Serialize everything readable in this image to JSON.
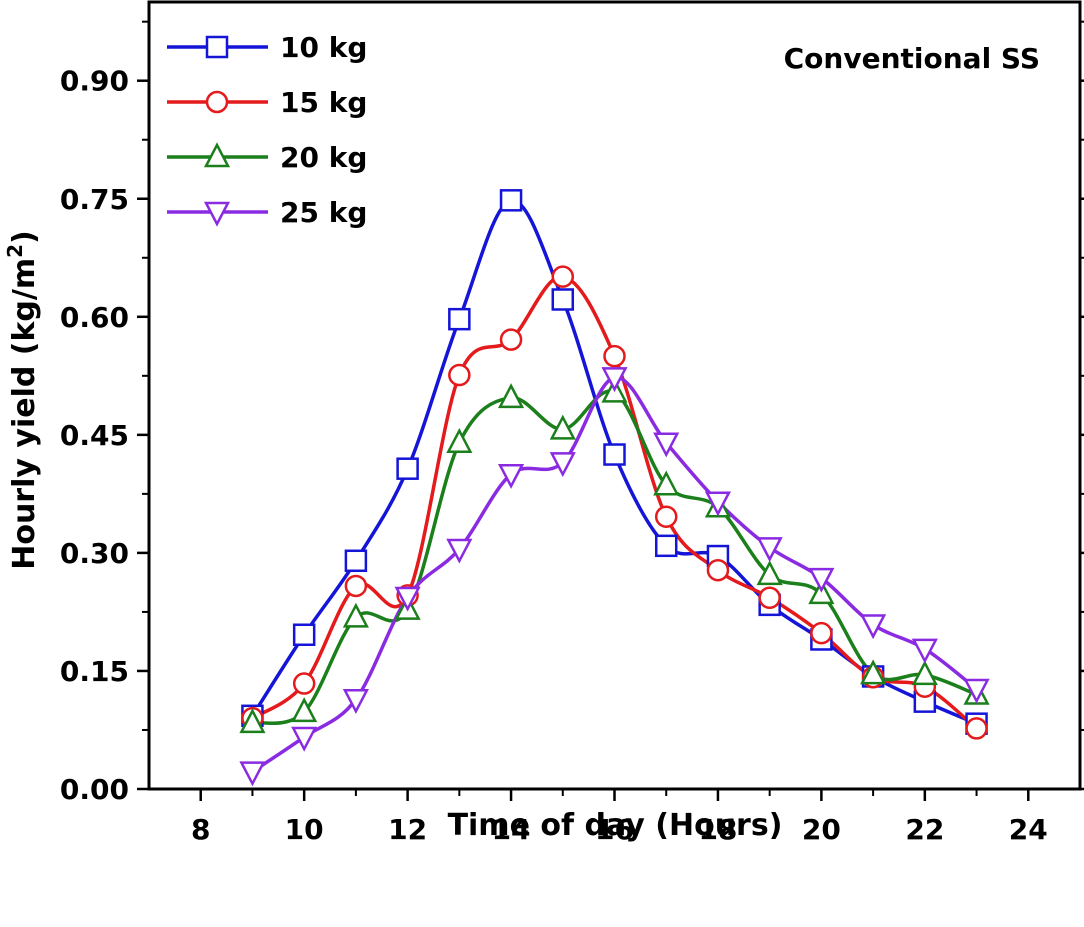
{
  "chart_data": {
    "type": "line",
    "title": "",
    "annotation": "Conventional SS",
    "xlabel": "Time of day (Hours)",
    "ylabel_main": "Hourly yield (kg/m",
    "ylabel_sup": "2",
    "ylabel_end": ")",
    "xlim": [
      7,
      25
    ],
    "ylim": [
      0.0,
      1.0
    ],
    "xticks": [
      8,
      10,
      12,
      14,
      16,
      18,
      20,
      22,
      24
    ],
    "xtick_labels": [
      "8",
      "10",
      "12",
      "14",
      "16",
      "18",
      "20",
      "22",
      "24"
    ],
    "yticks": [
      0.0,
      0.15,
      0.3,
      0.45,
      0.6,
      0.75,
      0.9
    ],
    "ytick_labels": [
      "0.00",
      "0.15",
      "0.30",
      "0.45",
      "0.60",
      "0.75",
      "0.90"
    ],
    "legend_position": "top-left",
    "x": [
      9,
      10,
      11,
      12,
      13,
      14,
      15,
      16,
      17,
      18,
      19,
      20,
      21,
      22,
      23
    ],
    "series": [
      {
        "name": "10 kg",
        "marker": "square",
        "color": "#1515d8",
        "values": [
          0.093,
          0.196,
          0.29,
          0.407,
          0.597,
          0.748,
          0.622,
          0.425,
          0.309,
          0.296,
          0.234,
          0.19,
          0.143,
          0.111,
          0.083
        ]
      },
      {
        "name": "15 kg",
        "marker": "circle",
        "color": "#e41a1c",
        "values": [
          0.09,
          0.134,
          0.258,
          0.246,
          0.526,
          0.571,
          0.651,
          0.55,
          0.346,
          0.278,
          0.243,
          0.198,
          0.142,
          0.13,
          0.077
        ]
      },
      {
        "name": "20 kg",
        "marker": "triangle-up",
        "color": "#1b7f1b",
        "values": [
          0.084,
          0.098,
          0.218,
          0.228,
          0.44,
          0.497,
          0.457,
          0.504,
          0.386,
          0.358,
          0.272,
          0.248,
          0.146,
          0.145,
          0.12
        ]
      },
      {
        "name": "25 kg",
        "marker": "triangle-down",
        "color": "#8a2be2",
        "values": [
          0.022,
          0.066,
          0.114,
          0.244,
          0.305,
          0.4,
          0.415,
          0.523,
          0.44,
          0.365,
          0.307,
          0.268,
          0.209,
          0.178,
          0.127
        ]
      }
    ]
  }
}
